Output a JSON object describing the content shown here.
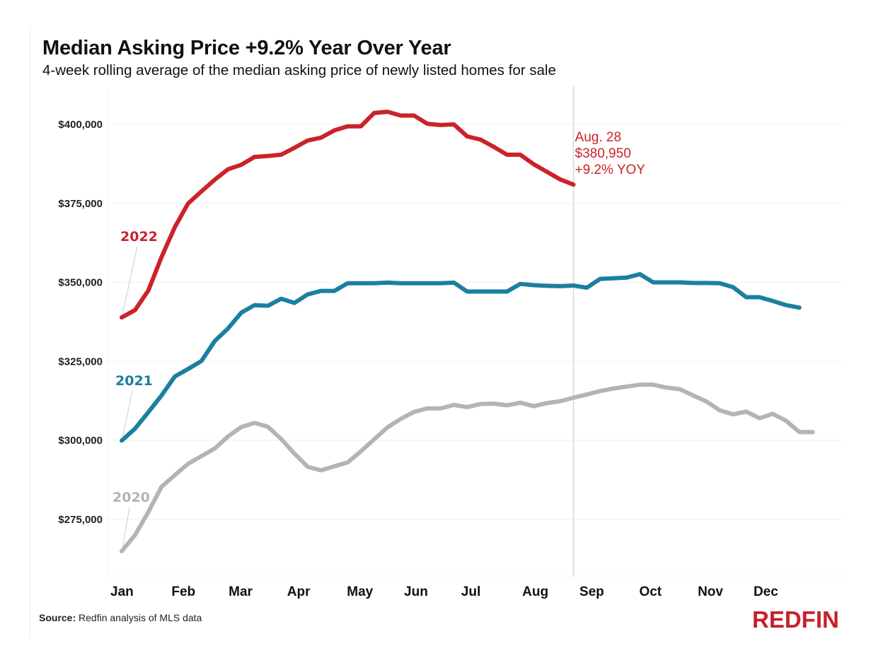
{
  "header": {
    "title": "Median Asking Price +9.2% Year Over Year",
    "subtitle": "4-week rolling average of the median asking price of newly listed homes for sale"
  },
  "footer": {
    "source_label": "Source:",
    "source_text": " Redfin analysis of MLS data",
    "logo": "REDFIN"
  },
  "colors": {
    "2022": "#cc2229",
    "2021": "#1b7fa0",
    "2020": "#b4b4b4",
    "grid": "#f0f0f0",
    "marker": "#d8d8d8"
  },
  "chart_data": {
    "type": "line",
    "title": "Median Asking Price +9.2% Year Over Year",
    "subtitle": "4-week rolling average of the median asking price of newly listed homes for sale",
    "xlabel": "",
    "ylabel": "",
    "x_unit": "week of year",
    "x_range": [
      1,
      56
    ],
    "ylim": [
      255000,
      410000
    ],
    "yticks": [
      275000,
      300000,
      325000,
      350000,
      375000,
      400000
    ],
    "ytick_labels": [
      "$275,000",
      "$300,000",
      "$325,000",
      "$350,000",
      "$375,000",
      "$400,000"
    ],
    "xtick_labels": [
      "Jan",
      "Feb",
      "Mar",
      "Apr",
      "May",
      "Jun",
      "Jul",
      "Aug",
      "Sep",
      "Oct",
      "Nov",
      "Dec"
    ],
    "xtick_weeks": [
      1,
      5.6,
      9.9,
      14.3,
      18.8,
      23.1,
      27.4,
      32.0,
      36.3,
      40.8,
      45.2,
      49.4
    ],
    "grid": true,
    "legend": "inline-labels",
    "series": [
      {
        "name": "2022",
        "values": [
          338900,
          341200,
          347400,
          358000,
          367500,
          375000,
          378800,
          382500,
          385800,
          387200,
          389700,
          390000,
          390400,
          392600,
          394900,
          395800,
          398100,
          399400,
          399400,
          403600,
          404000,
          402800,
          402800,
          400200,
          399800,
          400000,
          396200,
          395200,
          392900,
          390400,
          390400,
          387400,
          385000,
          382600,
          380950
        ]
      },
      {
        "name": "2021",
        "values": [
          299900,
          303700,
          308900,
          314200,
          320200,
          322600,
          325100,
          331400,
          335400,
          340400,
          342800,
          342600,
          344800,
          343500,
          346200,
          347300,
          347300,
          349700,
          349700,
          349700,
          349900,
          349700,
          349700,
          349700,
          349700,
          349900,
          347100,
          347100,
          347100,
          347100,
          349500,
          349100,
          348900,
          348800,
          349000,
          348300,
          351100,
          351300,
          351500,
          352600,
          350000,
          350000,
          350000,
          349800,
          349800,
          349700,
          348500,
          345300,
          345300,
          344100,
          342800,
          342000
        ]
      },
      {
        "name": "2020",
        "values": [
          264900,
          270000,
          277300,
          285300,
          289000,
          292600,
          295000,
          297400,
          301200,
          304200,
          305500,
          304300,
          300400,
          295800,
          291600,
          290500,
          291800,
          293000,
          296500,
          300300,
          304100,
          306800,
          309000,
          310100,
          310100,
          311200,
          310500,
          311500,
          311600,
          311100,
          311900,
          310800,
          311800,
          312400,
          313500,
          314500,
          315600,
          316400,
          317000,
          317600,
          317600,
          316700,
          316200,
          314200,
          312300,
          309500,
          308200,
          309100,
          307000,
          308400,
          306200,
          302600,
          302600
        ]
      }
    ],
    "series_labels": [
      {
        "series": "2022",
        "text": "2022"
      },
      {
        "series": "2021",
        "text": "2021"
      },
      {
        "series": "2020",
        "text": "2020"
      }
    ],
    "annotation": {
      "series": "2022",
      "lines": [
        "Aug. 28",
        "$380,950",
        "+9.2% YOY"
      ],
      "marker_week": 35
    }
  }
}
